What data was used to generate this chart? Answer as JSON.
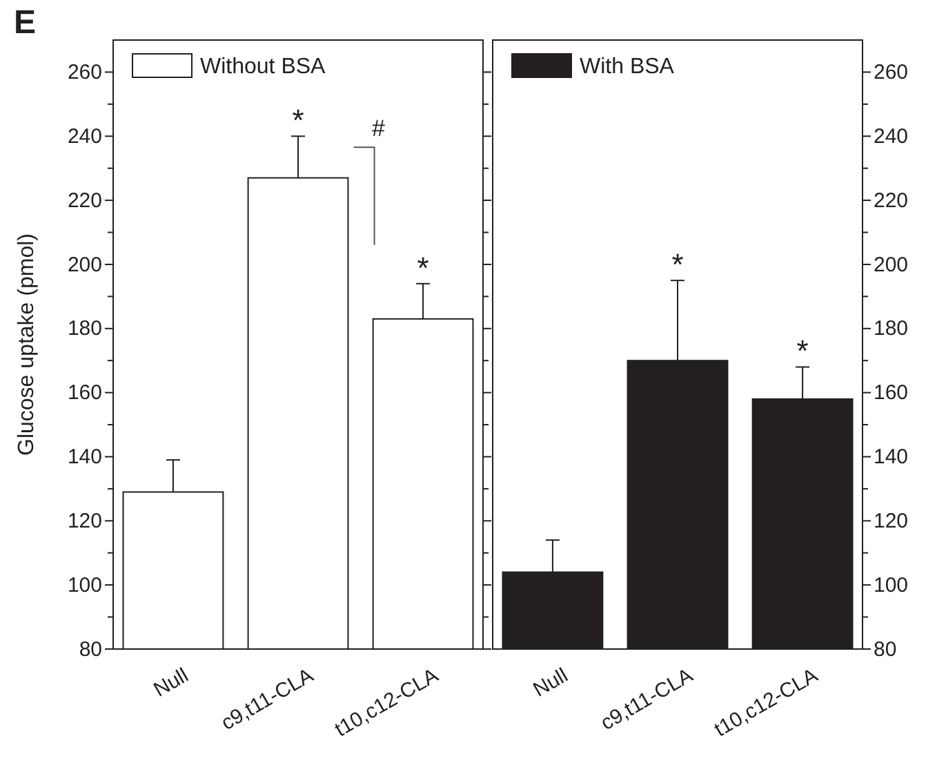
{
  "chart_data": [
    {
      "type": "bar",
      "title": "E",
      "ylabel": "Glucose uptake (pmol)",
      "categories": [
        "Null",
        "c9,t11-CLA",
        "t10,c12-CLA"
      ],
      "series": [
        {
          "name": "Without BSA",
          "color": "#ffffff",
          "values": [
            129,
            227,
            183
          ],
          "errors": [
            10,
            13,
            11
          ]
        }
      ],
      "ylim": [
        80,
        270
      ],
      "yticks": [
        80,
        {
          "value": 90,
          "label": null
        },
        100,
        {
          "value": 110,
          "label": null
        },
        120,
        {
          "value": 130,
          "label": null
        },
        140,
        {
          "value": 150,
          "label": null
        },
        160,
        {
          "value": 170,
          "label": null
        },
        180,
        {
          "value": 190,
          "label": null
        },
        200,
        {
          "value": 210,
          "label": null
        },
        220,
        {
          "value": 230,
          "label": null
        },
        240,
        {
          "value": 250,
          "label": null
        },
        260
      ],
      "legend": "top left",
      "annotations": [
        "*",
        "*",
        "#"
      ]
    },
    {
      "type": "bar",
      "categories": [
        "Null",
        "c9,t11-CLA",
        "t10,c12-CLA"
      ],
      "series": [
        {
          "name": "With BSA",
          "color": "#231f20",
          "values": [
            104,
            170,
            158
          ],
          "errors": [
            10,
            25,
            10
          ],
          "axis": "y2"
        }
      ],
      "y2lim": [
        80,
        270
      ],
      "y2ticks": [
        80,
        {
          "value": 90,
          "label": null
        },
        100,
        {
          "value": 110,
          "label": null
        },
        120,
        {
          "value": 130,
          "label": null
        },
        140,
        {
          "value": 150,
          "label": null
        },
        160,
        {
          "value": 170,
          "label": null
        },
        180,
        {
          "value": 190,
          "label": null
        },
        200,
        {
          "value": 210,
          "label": null
        },
        220,
        {
          "value": 230,
          "label": null
        },
        240,
        {
          "value": 250,
          "label": null
        },
        260
      ],
      "legend": "top left",
      "annotations": [
        "*",
        "*"
      ]
    }
  ]
}
